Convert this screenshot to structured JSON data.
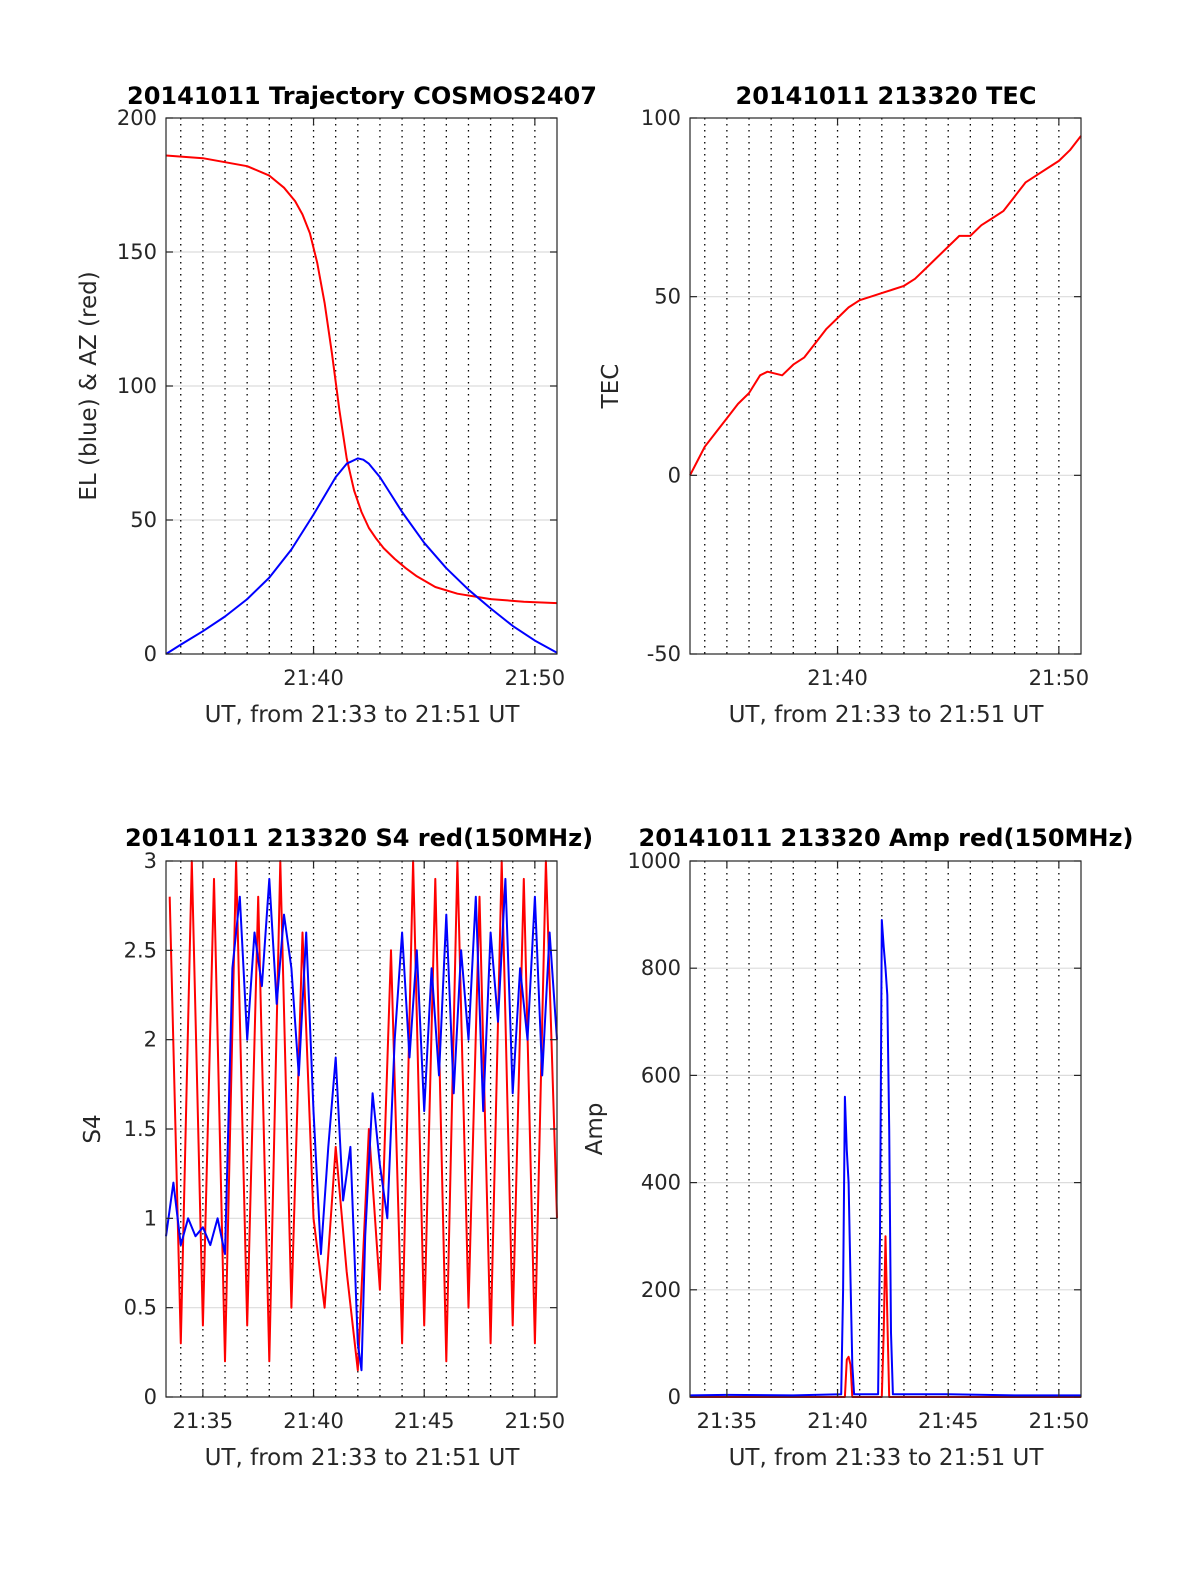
{
  "chart_data": [
    {
      "id": "trajectory",
      "type": "line",
      "title": "20141011 Trajectory COSMOS2407",
      "xlabel": "UT, from 21:33 to 21:51 UT",
      "ylabel": "EL (blue) & AZ (red)",
      "xlim": [
        "21:33:20",
        "21:51:00"
      ],
      "ylim": [
        0,
        200
      ],
      "yticks": [
        0,
        50,
        100,
        150,
        200
      ],
      "xticks": [
        "21:40",
        "21:50"
      ],
      "grid": "dotted vertical every minute, light horizontal at y ticks",
      "series": [
        {
          "color": "#ff0000",
          "x": [
            "21:33:20",
            "21:35:00",
            "21:37:00",
            "21:38:00",
            "21:38:40",
            "21:39:10",
            "21:39:30",
            "21:39:50",
            "21:40:10",
            "21:40:30",
            "21:40:50",
            "21:41:10",
            "21:41:30",
            "21:41:50",
            "21:42:10",
            "21:42:30",
            "21:42:50",
            "21:43:10",
            "21:43:40",
            "21:44:10",
            "21:44:40",
            "21:45:30",
            "21:46:30",
            "21:48:00",
            "21:49:30",
            "21:51:00"
          ],
          "values": [
            186,
            185,
            182,
            178.5,
            174,
            169,
            164,
            157,
            146,
            131,
            112,
            91,
            73,
            61,
            53,
            47,
            43,
            39.5,
            35.5,
            32,
            29,
            25,
            22.5,
            20.5,
            19.5,
            19
          ]
        },
        {
          "color": "#0000ff",
          "x": [
            "21:33:20",
            "21:34:00",
            "21:35:00",
            "21:36:00",
            "21:37:00",
            "21:38:00",
            "21:39:00",
            "21:40:00",
            "21:40:30",
            "21:41:00",
            "21:41:30",
            "21:42:00",
            "21:42:15",
            "21:42:30",
            "21:43:00",
            "21:43:30",
            "21:44:00",
            "21:45:00",
            "21:46:00",
            "21:47:00",
            "21:48:00",
            "21:49:00",
            "21:50:00",
            "21:51:00"
          ],
          "values": [
            0,
            3.5,
            8.5,
            14,
            20.5,
            28.5,
            39,
            52,
            59,
            66,
            71,
            73,
            72.5,
            71,
            66,
            59.5,
            53,
            41.5,
            32,
            24,
            17,
            10.5,
            5,
            0.5
          ]
        }
      ]
    },
    {
      "id": "tec",
      "type": "line",
      "title": "20141011 213320 TEC",
      "xlabel": "UT, from 21:33 to 21:51 UT",
      "ylabel": "TEC",
      "xlim": [
        "21:33:20",
        "21:51:00"
      ],
      "ylim": [
        -50,
        100
      ],
      "yticks": [
        -50,
        0,
        50,
        100
      ],
      "xticks": [
        "21:40",
        "21:50"
      ],
      "grid": "dotted vertical every minute, light horizontal at y ticks",
      "series": [
        {
          "color": "#ff0000",
          "x": [
            "21:33:20",
            "21:33:40",
            "21:34:00",
            "21:34:30",
            "21:35:00",
            "21:35:30",
            "21:36:00",
            "21:36:30",
            "21:36:50",
            "21:37:30",
            "21:38:00",
            "21:38:30",
            "21:39:00",
            "21:39:30",
            "21:40:00",
            "21:40:30",
            "21:41:00",
            "21:41:30",
            "21:42:00",
            "21:42:30",
            "21:43:00",
            "21:43:30",
            "21:44:00",
            "21:44:30",
            "21:45:00",
            "21:45:30",
            "21:46:00",
            "21:46:30",
            "21:47:00",
            "21:47:30",
            "21:48:00",
            "21:48:30",
            "21:49:00",
            "21:49:30",
            "21:50:00",
            "21:50:30",
            "21:51:00"
          ],
          "values": [
            0,
            4,
            8,
            12,
            16,
            20,
            23,
            28,
            29,
            28,
            31,
            33,
            37,
            41,
            44,
            47,
            49,
            50,
            51,
            52,
            53,
            55,
            58,
            61,
            64,
            67,
            67,
            70,
            72,
            74,
            78,
            82,
            84,
            86,
            88,
            91,
            95
          ]
        }
      ]
    },
    {
      "id": "s4",
      "type": "line",
      "title": "20141011 213320 S4 red(150MHz)",
      "xlabel": "UT, from 21:33 to 21:51 UT",
      "ylabel": "S4",
      "xlim": [
        "21:33:20",
        "21:51:00"
      ],
      "ylim": [
        0,
        3
      ],
      "yticks": [
        0,
        0.5,
        1,
        1.5,
        2,
        2.5,
        3
      ],
      "xticks": [
        "21:35",
        "21:40",
        "21:45",
        "21:50"
      ],
      "grid": "dotted vertical every minute, light horizontal at y ticks",
      "series": [
        {
          "color": "#ff0000",
          "x": [
            "21:33:30",
            "21:34:00",
            "21:34:30",
            "21:35:00",
            "21:35:30",
            "21:36:00",
            "21:36:30",
            "21:37:00",
            "21:37:30",
            "21:38:00",
            "21:38:30",
            "21:39:00",
            "21:39:30",
            "21:40:00",
            "21:40:30",
            "21:41:00",
            "21:41:30",
            "21:42:00",
            "21:42:30",
            "21:43:00",
            "21:43:30",
            "21:44:00",
            "21:44:30",
            "21:45:00",
            "21:45:30",
            "21:46:00",
            "21:46:30",
            "21:47:00",
            "21:47:30",
            "21:48:00",
            "21:48:30",
            "21:49:00",
            "21:49:30",
            "21:50:00",
            "21:50:30",
            "21:51:00"
          ],
          "values": [
            2.8,
            0.3,
            3.0,
            0.4,
            2.9,
            0.2,
            3.0,
            0.4,
            2.8,
            0.2,
            3.0,
            0.5,
            2.6,
            1.0,
            0.5,
            1.4,
            0.7,
            0.15,
            1.5,
            0.6,
            2.5,
            0.3,
            3.0,
            0.4,
            2.9,
            0.2,
            3.0,
            0.5,
            2.8,
            0.3,
            3.0,
            0.4,
            2.9,
            0.3,
            3.0,
            1.0
          ]
        },
        {
          "color": "#0000ff",
          "x": [
            "21:33:20",
            "21:33:40",
            "21:34:00",
            "21:34:20",
            "21:34:40",
            "21:35:00",
            "21:35:20",
            "21:35:40",
            "21:36:00",
            "21:36:20",
            "21:36:40",
            "21:37:00",
            "21:37:20",
            "21:37:40",
            "21:38:00",
            "21:38:20",
            "21:38:40",
            "21:39:00",
            "21:39:20",
            "21:39:40",
            "21:40:00",
            "21:40:20",
            "21:40:40",
            "21:41:00",
            "21:41:20",
            "21:41:40",
            "21:42:00",
            "21:42:10",
            "21:42:20",
            "21:42:40",
            "21:43:00",
            "21:43:20",
            "21:43:40",
            "21:44:00",
            "21:44:20",
            "21:44:40",
            "21:45:00",
            "21:45:20",
            "21:45:40",
            "21:46:00",
            "21:46:20",
            "21:46:40",
            "21:47:00",
            "21:47:20",
            "21:47:40",
            "21:48:00",
            "21:48:20",
            "21:48:40",
            "21:49:00",
            "21:49:20",
            "21:49:40",
            "21:50:00",
            "21:50:20",
            "21:50:40",
            "21:51:00"
          ],
          "values": [
            0.9,
            1.2,
            0.85,
            1.0,
            0.9,
            0.95,
            0.85,
            1.0,
            0.8,
            2.4,
            2.8,
            2.0,
            2.6,
            2.3,
            2.9,
            2.2,
            2.7,
            2.4,
            1.8,
            2.6,
            1.6,
            0.8,
            1.4,
            1.9,
            1.1,
            1.4,
            0.3,
            0.15,
            0.9,
            1.7,
            1.3,
            1.0,
            2.0,
            2.6,
            1.9,
            2.5,
            1.6,
            2.4,
            1.8,
            2.7,
            1.7,
            2.5,
            2.0,
            2.8,
            1.6,
            2.6,
            2.1,
            2.9,
            1.7,
            2.4,
            2.0,
            2.8,
            1.8,
            2.6,
            2.0
          ]
        }
      ]
    },
    {
      "id": "amp",
      "type": "line",
      "title": "20141011 213320 Amp red(150MHz)",
      "xlabel": "UT, from 21:33 to 21:51 UT",
      "ylabel": "Amp",
      "xlim": [
        "21:33:20",
        "21:51:00"
      ],
      "ylim": [
        0,
        1000
      ],
      "yticks": [
        0,
        200,
        400,
        600,
        800,
        1000
      ],
      "xticks": [
        "21:35",
        "21:40",
        "21:45",
        "21:50"
      ],
      "grid": "dotted vertical every minute, light horizontal at y ticks",
      "series": [
        {
          "color": "#ff0000",
          "x": [
            "21:33:20",
            "21:40:20",
            "21:40:25",
            "21:40:30",
            "21:40:35",
            "21:40:40",
            "21:42:00",
            "21:42:05",
            "21:42:10",
            "21:42:15",
            "21:42:20",
            "21:51:00"
          ],
          "values": [
            0,
            0,
            70,
            75,
            60,
            0,
            0,
            120,
            300,
            150,
            0,
            0
          ]
        },
        {
          "color": "#0000ff",
          "x": [
            "21:33:20",
            "21:35:00",
            "21:38:00",
            "21:40:10",
            "21:40:15",
            "21:40:20",
            "21:40:25",
            "21:40:30",
            "21:40:35",
            "21:40:40",
            "21:40:45",
            "21:41:50",
            "21:41:55",
            "21:42:00",
            "21:42:05",
            "21:42:10",
            "21:42:15",
            "21:42:20",
            "21:42:25",
            "21:42:30",
            "21:45:00",
            "21:48:00",
            "21:51:00"
          ],
          "values": [
            3,
            4,
            3,
            5,
            200,
            560,
            460,
            400,
            220,
            60,
            5,
            5,
            300,
            890,
            840,
            800,
            750,
            500,
            120,
            5,
            5,
            3,
            3
          ]
        }
      ]
    }
  ]
}
